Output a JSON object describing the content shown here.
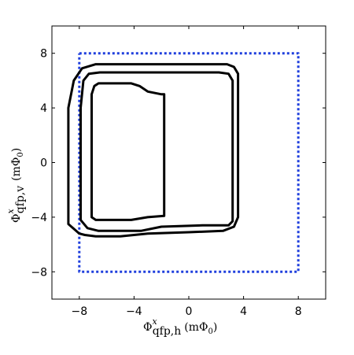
{
  "chart_data": {
    "type": "line",
    "title": "",
    "xlabel": {
      "main": "Φ",
      "sup": "x",
      "sub": "qfp,h",
      "unit_prefix": "(mΦ",
      "unit_sub": "0",
      "unit_suffix": ")"
    },
    "ylabel": {
      "main": "Φ",
      "sup": "x",
      "sub": "qfp,v",
      "unit_prefix": "(mΦ",
      "unit_sub": "0",
      "unit_suffix": ")"
    },
    "xlim": [
      -10,
      10
    ],
    "ylim": [
      -10,
      10
    ],
    "xticks": [
      -8,
      -4,
      0,
      4,
      8
    ],
    "yticks": [
      -8,
      -4,
      0,
      4,
      8
    ],
    "xtick_labels": [
      "−8",
      "−4",
      "0",
      "4",
      "8"
    ],
    "ytick_labels": [
      "−8",
      "−4",
      "0",
      "4",
      "8"
    ],
    "grid": false,
    "colors": {
      "contour": "#000000",
      "boundary": "#1f3fdd",
      "frame": "#000000"
    },
    "series": [
      {
        "style": "dotted",
        "color": "#1f3fdd",
        "x": [
          -8,
          8,
          8,
          -8,
          -8
        ],
        "y": [
          8,
          8,
          -8,
          -8,
          8
        ]
      },
      {
        "style": "solid",
        "color": "#000000",
        "x": [
          -8.8,
          -8.8,
          -8.0,
          -7.6,
          -6.8,
          -5.0,
          -3.0,
          0.0,
          2.5,
          3.3,
          3.6,
          3.6,
          3.3,
          2.8,
          0.5,
          -3.0,
          -4.5,
          -6.8,
          -7.8,
          -8.4,
          -8.8
        ],
        "y": [
          4.0,
          -4.5,
          -5.2,
          -5.3,
          -5.4,
          -5.4,
          -5.2,
          -5.1,
          -5.0,
          -4.7,
          -4.0,
          6.5,
          7.0,
          7.2,
          7.2,
          7.2,
          7.2,
          7.2,
          6.9,
          6.0,
          4.0
        ]
      },
      {
        "style": "solid",
        "color": "#000000",
        "x": [
          -7.9,
          -7.9,
          -7.4,
          -6.6,
          -5.0,
          -3.5,
          -2.0,
          1.0,
          2.9,
          3.2,
          3.2,
          2.9,
          2.2,
          0.0,
          -3.0,
          -6.5,
          -7.3,
          -7.7,
          -7.9
        ],
        "y": [
          4.0,
          -4.2,
          -4.8,
          -5.0,
          -5.0,
          -5.0,
          -4.7,
          -4.6,
          -4.6,
          -4.3,
          6.0,
          6.5,
          6.6,
          6.6,
          6.6,
          6.6,
          6.5,
          6.0,
          4.0
        ]
      },
      {
        "style": "solid",
        "color": "#000000",
        "x": [
          -7.1,
          -7.1,
          -6.8,
          -4.2,
          -3.0,
          -1.8,
          -1.8,
          -2.0,
          -3.0,
          -3.6,
          -4.2,
          -5.2,
          -6.6,
          -6.9,
          -7.1
        ],
        "y": [
          5.0,
          -4.0,
          -4.2,
          -4.2,
          -4.0,
          -3.9,
          5.0,
          5.0,
          5.2,
          5.6,
          5.8,
          5.8,
          5.8,
          5.6,
          5.0
        ]
      }
    ]
  }
}
